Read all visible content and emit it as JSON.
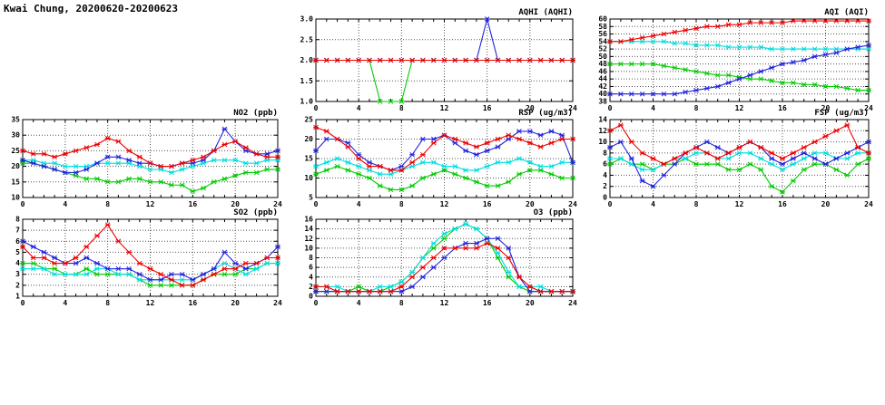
{
  "page": {
    "title": "Kwai Chung, 20200620-20200623"
  },
  "chart_data": [
    {
      "type": "line",
      "name": "aqhi",
      "title": "AQHI (AQHI)",
      "xlim": [
        0,
        24
      ],
      "xticks": [
        0,
        4,
        8,
        12,
        16,
        20,
        24
      ],
      "ylim": [
        1,
        3
      ],
      "yticks": [
        1,
        1.5,
        2,
        2.5,
        3
      ],
      "ydec": 1,
      "grid": true,
      "legend": "none",
      "series": [
        {
          "name": "green",
          "color": "#00cc00",
          "values": [
            2,
            2,
            2,
            2,
            2,
            2,
            1,
            1,
            1,
            2,
            2,
            2,
            2,
            2,
            2,
            2,
            2,
            2,
            2,
            2,
            2,
            2,
            2,
            2,
            2
          ]
        },
        {
          "name": "cyan",
          "color": "#00dddd",
          "values": [
            2,
            2,
            2,
            2,
            2,
            2,
            2,
            2,
            2,
            2,
            2,
            2,
            2,
            2,
            2,
            2,
            2,
            2,
            2,
            2,
            2,
            2,
            2,
            2,
            2
          ]
        },
        {
          "name": "blue",
          "color": "#2222dd",
          "values": [
            2,
            2,
            2,
            2,
            2,
            2,
            2,
            2,
            2,
            2,
            2,
            2,
            2,
            2,
            2,
            2,
            3,
            2,
            2,
            2,
            2,
            2,
            2,
            2,
            2
          ]
        },
        {
          "name": "red",
          "color": "#ee0000",
          "values": [
            2,
            2,
            2,
            2,
            2,
            2,
            2,
            2,
            2,
            2,
            2,
            2,
            2,
            2,
            2,
            2,
            2,
            2,
            2,
            2,
            2,
            2,
            2,
            2,
            2
          ]
        }
      ]
    },
    {
      "type": "line",
      "name": "aqi",
      "title": "AQI (AQI)",
      "xlim": [
        0,
        24
      ],
      "xticks": [
        0,
        4,
        8,
        12,
        16,
        20,
        24
      ],
      "ylim": [
        38,
        60
      ],
      "yticks": [
        38,
        40,
        42,
        44,
        46,
        48,
        50,
        52,
        54,
        56,
        58,
        60
      ],
      "ydec": 0,
      "grid": true,
      "legend": "none",
      "series": [
        {
          "name": "green",
          "color": "#00cc00",
          "values": [
            48,
            48,
            48,
            48,
            48,
            47.5,
            47,
            46.5,
            46,
            45.5,
            45,
            45,
            44.5,
            44,
            44,
            43.5,
            43,
            43,
            42.5,
            42.5,
            42,
            42,
            41.5,
            41,
            41
          ]
        },
        {
          "name": "cyan",
          "color": "#00dddd",
          "values": [
            54,
            54,
            54,
            54,
            54,
            54,
            53.5,
            53.5,
            53,
            53,
            53,
            52.5,
            52.5,
            52.5,
            52.5,
            52,
            52,
            52,
            52,
            52,
            52,
            52,
            52,
            52,
            52
          ]
        },
        {
          "name": "blue",
          "color": "#2222dd",
          "values": [
            40,
            40,
            40,
            40,
            40,
            40,
            40,
            40.5,
            41,
            41.5,
            42,
            43,
            44,
            45,
            46,
            47,
            48,
            48.5,
            49,
            50,
            50.5,
            51,
            52,
            52.5,
            53
          ]
        },
        {
          "name": "red",
          "color": "#ee0000",
          "values": [
            54,
            54,
            54.5,
            55,
            55.5,
            56,
            56.5,
            57,
            57.5,
            58,
            58,
            58.5,
            58.5,
            59,
            59,
            59,
            59,
            59.5,
            59.5,
            59.5,
            59.5,
            59.5,
            59.5,
            59.5,
            59.5
          ]
        }
      ]
    },
    {
      "type": "line",
      "name": "no2",
      "title": "NO2 (ppb)",
      "xlim": [
        0,
        24
      ],
      "xticks": [
        0,
        4,
        8,
        12,
        16,
        20,
        24
      ],
      "ylim": [
        10,
        35
      ],
      "yticks": [
        10,
        15,
        20,
        25,
        30,
        35
      ],
      "ydec": 0,
      "grid": true,
      "legend": "none",
      "series": [
        {
          "name": "green",
          "color": "#00cc00",
          "values": [
            21,
            21,
            20,
            19,
            18,
            17,
            16,
            16,
            15,
            15,
            16,
            16,
            15,
            15,
            14,
            14,
            12,
            13,
            15,
            16,
            17,
            18,
            18,
            19,
            19
          ]
        },
        {
          "name": "cyan",
          "color": "#00dddd",
          "values": [
            22,
            22,
            21,
            21,
            20,
            20,
            20,
            21,
            21,
            21,
            21,
            20,
            19,
            19,
            18,
            19,
            20,
            21,
            22,
            22,
            22,
            21,
            21,
            22,
            22
          ]
        },
        {
          "name": "blue",
          "color": "#2222dd",
          "values": [
            22,
            21,
            20,
            19,
            18,
            18,
            19,
            21,
            23,
            23,
            22,
            21,
            21,
            20,
            20,
            21,
            21,
            22,
            25,
            32,
            28,
            25,
            24,
            24,
            25
          ]
        },
        {
          "name": "red",
          "color": "#ee0000",
          "values": [
            25,
            24,
            24,
            23,
            24,
            25,
            26,
            27,
            29,
            28,
            25,
            23,
            21,
            20,
            20,
            21,
            22,
            23,
            25,
            27,
            28,
            26,
            24,
            23,
            23
          ]
        }
      ]
    },
    {
      "type": "line",
      "name": "rsp",
      "title": "RSP (ug/m3)",
      "xlim": [
        0,
        24
      ],
      "xticks": [
        0,
        4,
        8,
        12,
        16,
        20,
        24
      ],
      "ylim": [
        5,
        25
      ],
      "yticks": [
        5,
        10,
        15,
        20,
        25
      ],
      "ydec": 0,
      "grid": true,
      "legend": "none",
      "series": [
        {
          "name": "green",
          "color": "#00cc00",
          "values": [
            11,
            12,
            13,
            12,
            11,
            10,
            8,
            7,
            7,
            8,
            10,
            11,
            12,
            11,
            10,
            9,
            8,
            8,
            9,
            11,
            12,
            12,
            11,
            10,
            10
          ]
        },
        {
          "name": "cyan",
          "color": "#00dddd",
          "values": [
            13,
            14,
            15,
            14,
            13,
            12,
            11,
            11,
            12,
            13,
            14,
            14,
            13,
            13,
            12,
            12,
            13,
            14,
            14,
            15,
            14,
            13,
            13,
            14,
            14
          ]
        },
        {
          "name": "blue",
          "color": "#2222dd",
          "values": [
            17,
            20,
            20,
            19,
            16,
            14,
            13,
            12,
            13,
            16,
            20,
            20,
            21,
            19,
            17,
            16,
            17,
            18,
            20,
            22,
            22,
            21,
            22,
            21,
            14
          ]
        },
        {
          "name": "red",
          "color": "#ee0000",
          "values": [
            23,
            22,
            20,
            18,
            15,
            13,
            13,
            12,
            12,
            14,
            16,
            19,
            21,
            20,
            19,
            18,
            19,
            20,
            21,
            20,
            19,
            18,
            19,
            20,
            20
          ]
        }
      ]
    },
    {
      "type": "line",
      "name": "fsp",
      "title": "FSP (ug/m3)",
      "xlim": [
        0,
        24
      ],
      "xticks": [
        0,
        4,
        8,
        12,
        16,
        20,
        24
      ],
      "ylim": [
        0,
        14
      ],
      "yticks": [
        0,
        2,
        4,
        6,
        8,
        10,
        12,
        14
      ],
      "ydec": 0,
      "grid": true,
      "legend": "none",
      "series": [
        {
          "name": "green",
          "color": "#00cc00",
          "values": [
            6,
            7,
            6,
            6,
            5,
            6,
            6,
            7,
            6,
            6,
            6,
            5,
            5,
            6,
            5,
            2,
            1,
            3,
            5,
            6,
            6,
            5,
            4,
            6,
            7
          ]
        },
        {
          "name": "cyan",
          "color": "#00dddd",
          "values": [
            7,
            7,
            6,
            5,
            5,
            6,
            7,
            7,
            8,
            8,
            7,
            7,
            8,
            8,
            7,
            6,
            5,
            6,
            7,
            8,
            8,
            7,
            7,
            8,
            8
          ]
        },
        {
          "name": "blue",
          "color": "#2222dd",
          "values": [
            9,
            10,
            7,
            3,
            2,
            4,
            6,
            8,
            9,
            10,
            9,
            8,
            9,
            10,
            9,
            7,
            6,
            7,
            8,
            7,
            6,
            7,
            8,
            9,
            10
          ]
        },
        {
          "name": "red",
          "color": "#ee0000",
          "values": [
            12,
            13,
            10,
            8,
            7,
            6,
            7,
            8,
            9,
            8,
            7,
            8,
            9,
            10,
            9,
            8,
            7,
            8,
            9,
            10,
            11,
            12,
            13,
            9,
            8
          ]
        }
      ]
    },
    {
      "type": "line",
      "name": "so2",
      "title": "SO2 (ppb)",
      "xlim": [
        0,
        24
      ],
      "xticks": [
        0,
        4,
        8,
        12,
        16,
        20,
        24
      ],
      "ylim": [
        1,
        8
      ],
      "yticks": [
        1,
        2,
        3,
        4,
        5,
        6,
        7,
        8
      ],
      "ydec": 0,
      "grid": true,
      "legend": "none",
      "series": [
        {
          "name": "green",
          "color": "#00cc00",
          "values": [
            4,
            4,
            3.5,
            3.5,
            3,
            3,
            3.5,
            3,
            3,
            3,
            3,
            2.5,
            2,
            2,
            2,
            2,
            2,
            2.5,
            3,
            3,
            3,
            3.5,
            3.5,
            4,
            4
          ]
        },
        {
          "name": "cyan",
          "color": "#00dddd",
          "values": [
            3.5,
            3.5,
            3.5,
            3,
            3,
            3,
            3,
            3.5,
            3.5,
            3,
            3,
            2.5,
            2.5,
            2.5,
            2.5,
            2.5,
            2.5,
            3,
            3.5,
            4,
            3.5,
            3,
            3.5,
            4,
            4
          ]
        },
        {
          "name": "blue",
          "color": "#2222dd",
          "values": [
            6,
            5.5,
            5,
            4.5,
            4,
            4,
            4.5,
            4,
            3.5,
            3.5,
            3.5,
            3,
            2.5,
            2.5,
            3,
            3,
            2.5,
            3,
            3.5,
            5,
            4,
            3.5,
            4,
            4.5,
            5.5
          ]
        },
        {
          "name": "red",
          "color": "#ee0000",
          "values": [
            5.5,
            4.5,
            4.5,
            4,
            4,
            4.5,
            5.5,
            6.5,
            7.5,
            6,
            5,
            4,
            3.5,
            3,
            2.5,
            2,
            2,
            2.5,
            3,
            3.5,
            3.5,
            4,
            4,
            4.5,
            4.5
          ]
        }
      ]
    },
    {
      "type": "line",
      "name": "o3",
      "title": "O3 (ppb)",
      "xlim": [
        0,
        24
      ],
      "xticks": [
        0,
        4,
        8,
        12,
        16,
        20,
        24
      ],
      "ylim": [
        0,
        16
      ],
      "yticks": [
        0,
        2,
        4,
        6,
        8,
        10,
        12,
        14,
        16
      ],
      "ydec": 0,
      "grid": true,
      "legend": "none",
      "series": [
        {
          "name": "green",
          "color": "#00cc00",
          "values": [
            1,
            1,
            1,
            1,
            2,
            1,
            1,
            2,
            3,
            5,
            8,
            10,
            12,
            14,
            15,
            14,
            12,
            8,
            4,
            2,
            1,
            1,
            1,
            1,
            1
          ]
        },
        {
          "name": "cyan",
          "color": "#00dddd",
          "values": [
            2,
            2,
            2,
            1,
            1,
            1,
            2,
            2,
            3,
            5,
            8,
            11,
            13,
            14,
            15,
            14,
            12,
            9,
            5,
            2,
            2,
            2,
            1,
            1,
            1
          ]
        },
        {
          "name": "blue",
          "color": "#2222dd",
          "values": [
            1,
            1,
            1,
            1,
            1,
            1,
            1,
            1,
            1,
            2,
            4,
            6,
            8,
            10,
            11,
            11,
            12,
            12,
            10,
            4,
            1,
            1,
            1,
            1,
            1
          ]
        },
        {
          "name": "red",
          "color": "#ee0000",
          "values": [
            2,
            2,
            1,
            1,
            1,
            1,
            1,
            1,
            2,
            4,
            6,
            8,
            10,
            10,
            10,
            10,
            11,
            10,
            8,
            4,
            2,
            1,
            1,
            1,
            1
          ]
        }
      ]
    }
  ]
}
